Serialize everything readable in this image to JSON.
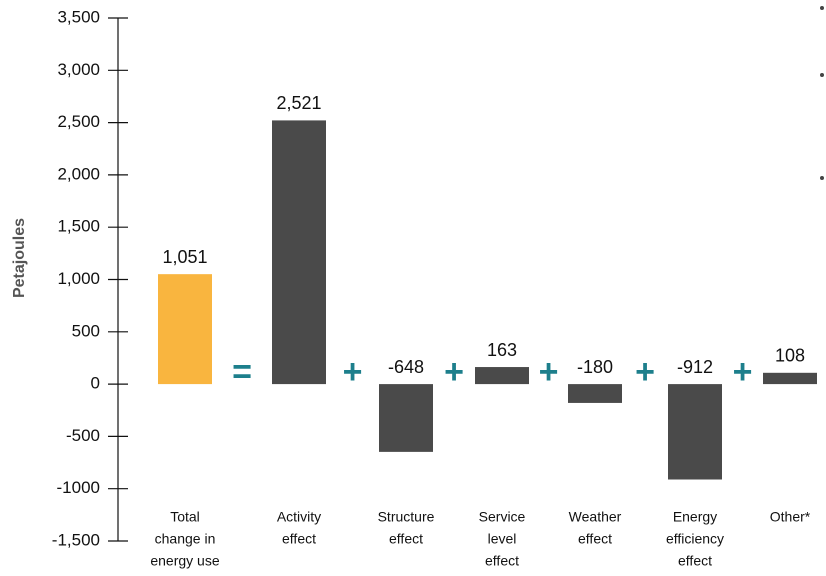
{
  "chart_data": {
    "type": "bar",
    "y_label": "Petajoules",
    "categories": [
      [
        "Total",
        "change in",
        "energy use"
      ],
      [
        "Activity",
        "effect"
      ],
      [
        "Structure",
        "effect"
      ],
      [
        "Service",
        "level",
        "effect"
      ],
      [
        "Weather",
        "effect"
      ],
      [
        "Energy",
        "efficiency",
        "effect"
      ],
      [
        "Other*"
      ]
    ],
    "values": [
      1051,
      2521,
      -648,
      163,
      -180,
      -912,
      108
    ],
    "value_labels": [
      "1,051",
      "2,521",
      "-648",
      "163",
      "-180",
      "-912",
      "108"
    ],
    "colors": [
      "#f9b53f",
      "#4a4a4a",
      "#4a4a4a",
      "#4a4a4a",
      "#4a4a4a",
      "#4a4a4a",
      "#4a4a4a"
    ],
    "operators": [
      "=",
      "+",
      "+",
      "+",
      "+",
      "+"
    ],
    "operator_color": "#1d7f8c",
    "ylim": [
      -1500,
      3500
    ],
    "yticks": [
      {
        "value": 3500,
        "label": "3,500"
      },
      {
        "value": 3000,
        "label": "3,000"
      },
      {
        "value": 2500,
        "label": "2,500"
      },
      {
        "value": 2000,
        "label": "2,000"
      },
      {
        "value": 1500,
        "label": "1,500"
      },
      {
        "value": 1000,
        "label": "1,000"
      },
      500,
      0,
      -500,
      -1000,
      {
        "value": -1500,
        "label": "-1,500"
      }
    ],
    "grid": false
  }
}
